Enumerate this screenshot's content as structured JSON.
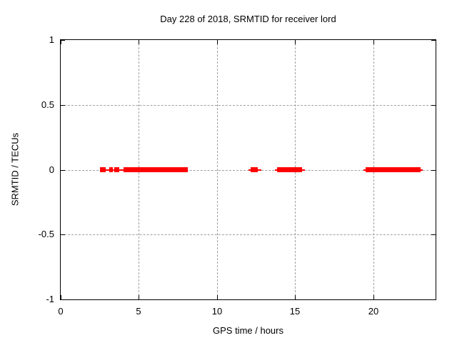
{
  "chart_data": {
    "type": "scatter",
    "title": "Day 228 of 2018, SRMTID for receiver lord",
    "xlabel": "GPS time / hours",
    "ylabel": "SRMTID / TECUs",
    "xlim": [
      0,
      24
    ],
    "ylim": [
      -1,
      1
    ],
    "xticks": [
      0,
      5,
      10,
      15,
      20
    ],
    "yticks": [
      -1,
      -0.5,
      0,
      0.5,
      1
    ],
    "grid": true,
    "legend": "none",
    "background_color": "#ffffff",
    "axis_color": "#000000",
    "grid_color": "#a0a0a0",
    "series": [
      {
        "name": "SRMTID",
        "color": "#ff0000",
        "marker": "filled-square",
        "y_value": 0,
        "clusters": [
          {
            "line_x": [
              2.5,
              8.1
            ],
            "solid_x": [
              [
                2.5,
                2.85
              ],
              [
                3.1,
                3.35
              ],
              [
                3.45,
                3.75
              ],
              [
                4.0,
                8.1
              ]
            ]
          },
          {
            "line_x": [
              12.0,
              12.8
            ],
            "solid_x": [
              [
                12.15,
                12.6
              ]
            ]
          },
          {
            "line_x": [
              13.7,
              15.6
            ],
            "solid_x": [
              [
                13.85,
                15.45
              ]
            ]
          },
          {
            "line_x": [
              19.4,
              23.2
            ],
            "solid_x": [
              [
                19.5,
                23.0
              ]
            ]
          }
        ]
      }
    ]
  }
}
